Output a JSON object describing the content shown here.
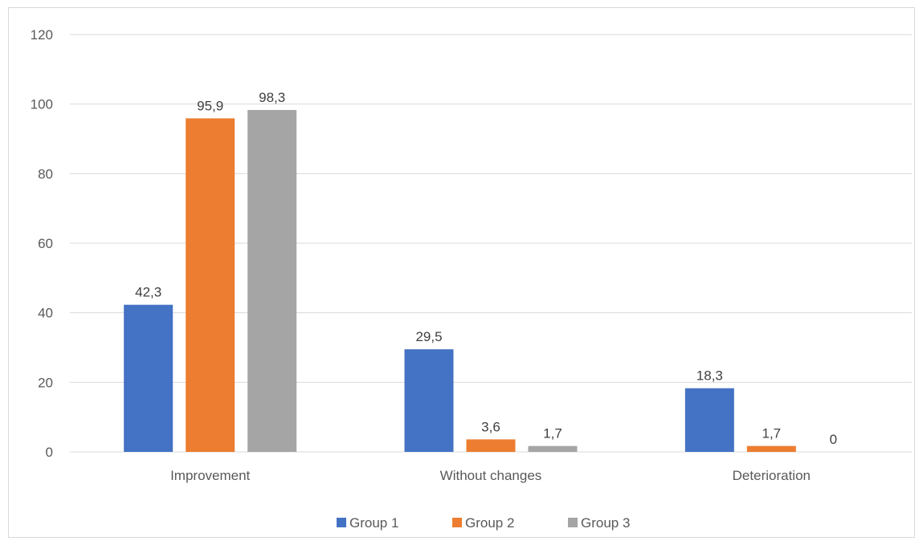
{
  "chart_data": {
    "type": "bar",
    "title": "",
    "xlabel": "",
    "ylabel": "",
    "categories": [
      "Improvement",
      "Without changes",
      "Deterioration"
    ],
    "series": [
      {
        "name": "Group 1",
        "color": "#4472c4",
        "values": [
          42.3,
          29.5,
          18.3
        ],
        "labels": [
          "42,3",
          "29,5",
          "18,3"
        ]
      },
      {
        "name": "Group 2",
        "color": "#ed7d31",
        "values": [
          95.9,
          3.6,
          1.7
        ],
        "labels": [
          "95,9",
          "3,6",
          "1,7"
        ]
      },
      {
        "name": "Group 3",
        "color": "#a5a5a5",
        "values": [
          98.3,
          1.7,
          0
        ],
        "labels": [
          "98,3",
          "1,7",
          "0"
        ]
      }
    ],
    "ylim": [
      0,
      120
    ],
    "yticks": [
      "0",
      "20",
      "40",
      "60",
      "80",
      "100",
      "120"
    ],
    "grid": true,
    "legend": "bottom"
  }
}
